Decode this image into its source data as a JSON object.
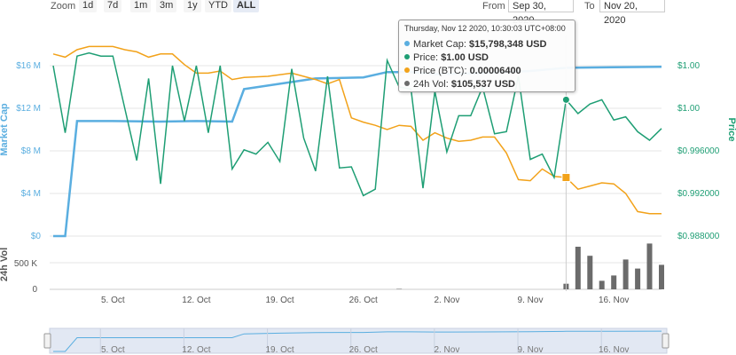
{
  "toolbar": {
    "zoom_label": "Zoom",
    "zoom_buttons": [
      "1d",
      "7d",
      "1m",
      "3m",
      "1y",
      "YTD",
      "ALL"
    ],
    "active": "ALL",
    "from_label": "From",
    "from_value": "Sep 30, 2020",
    "to_label": "To",
    "to_value": "Nov 20, 2020"
  },
  "tooltip": {
    "header": "Thursday, Nov 12 2020, 10:30:03 UTC+08:00",
    "rows": [
      {
        "label": "Market Cap:",
        "value": "$15,798,348 USD",
        "color": "#5aaee0"
      },
      {
        "label": "Price:",
        "value": "$1.00 USD",
        "color": "#1e9e74"
      },
      {
        "label": "Price (BTC):",
        "value": "0.00006400",
        "color": "#f2a21a"
      },
      {
        "label": "24h Vol:",
        "value": "$105,537 USD",
        "color": "#6b6b6b"
      }
    ]
  },
  "colors": {
    "market_cap": "#5aaee0",
    "price": "#1e9e74",
    "price_btc": "#f2a21a",
    "volume": "#6b6b6b"
  },
  "chart_data": {
    "type": "line",
    "x_start": "2020-09-30",
    "x_end": "2020-11-20",
    "x_ticks": [
      "5. Oct",
      "12. Oct",
      "19. Oct",
      "26. Oct",
      "2. Nov",
      "9. Nov",
      "16. Nov"
    ],
    "y_left": {
      "label": "Market Cap",
      "ticks": [
        "$0",
        "$4 M",
        "$8 M",
        "$12 M",
        "$16 M"
      ],
      "range": [
        0,
        16000000
      ]
    },
    "y_right": {
      "label": "Price",
      "ticks": [
        "$0.988000",
        "$0.992000",
        "$0.996000",
        "$1.00",
        "$1.00"
      ],
      "range": [
        0.988,
        1.004
      ]
    },
    "volume_axis": {
      "label": "24h Vol",
      "ticks": [
        "0",
        "500 K"
      ],
      "range": [
        0,
        1000000
      ]
    },
    "navigator_ticks": [
      "5. Oct",
      "12. Oct",
      "19. Oct",
      "26. Oct",
      "2. Nov",
      "9. Nov",
      "16. Nov"
    ],
    "series": [
      {
        "name": "Market Cap",
        "axis": "left",
        "points": [
          [
            "2020-09-30",
            0
          ],
          [
            "2020-10-01",
            0
          ],
          [
            "2020-10-02",
            10800000
          ],
          [
            "2020-10-05",
            10800000
          ],
          [
            "2020-10-09",
            10750000
          ],
          [
            "2020-10-12",
            10800000
          ],
          [
            "2020-10-15",
            10750000
          ],
          [
            "2020-10-16",
            13800000
          ],
          [
            "2020-10-19",
            14300000
          ],
          [
            "2020-10-22",
            14800000
          ],
          [
            "2020-10-26",
            14900000
          ],
          [
            "2020-10-28",
            15400000
          ],
          [
            "2020-10-30",
            15400000
          ],
          [
            "2020-11-01",
            15200000
          ],
          [
            "2020-11-05",
            15300000
          ],
          [
            "2020-11-09",
            15500000
          ],
          [
            "2020-11-12",
            15800000
          ],
          [
            "2020-11-16",
            15850000
          ],
          [
            "2020-11-20",
            15900000
          ]
        ]
      },
      {
        "name": "Price",
        "axis": "right",
        "points": [
          [
            "2020-09-30",
            1.004
          ],
          [
            "2020-10-01",
            0.9977
          ],
          [
            "2020-10-02",
            1.0049
          ],
          [
            "2020-10-03",
            1.0052
          ],
          [
            "2020-10-04",
            1.0049
          ],
          [
            "2020-10-05",
            1.0049
          ],
          [
            "2020-10-06",
            1.0
          ],
          [
            "2020-10-07",
            0.9951
          ],
          [
            "2020-10-08",
            1.0028
          ],
          [
            "2020-10-09",
            0.9929
          ],
          [
            "2020-10-10",
            1.004
          ],
          [
            "2020-10-11",
            0.9988
          ],
          [
            "2020-10-12",
            1.004
          ],
          [
            "2020-10-13",
            0.9977
          ],
          [
            "2020-10-14",
            1.004
          ],
          [
            "2020-10-15",
            0.9943
          ],
          [
            "2020-10-16",
            0.9961
          ],
          [
            "2020-10-17",
            0.9957
          ],
          [
            "2020-10-18",
            0.9968
          ],
          [
            "2020-10-19",
            0.995
          ],
          [
            "2020-10-20",
            1.0037
          ],
          [
            "2020-10-21",
            0.9972
          ],
          [
            "2020-10-22",
            0.9941
          ],
          [
            "2020-10-23",
            1.003
          ],
          [
            "2020-10-24",
            0.9944
          ],
          [
            "2020-10-25",
            0.9945
          ],
          [
            "2020-10-26",
            0.9918
          ],
          [
            "2020-10-27",
            0.9924
          ],
          [
            "2020-10-28",
            1.0045
          ],
          [
            "2020-10-29",
            1.002
          ],
          [
            "2020-10-30",
            1.0018
          ],
          [
            "2020-10-31",
            0.9925
          ],
          [
            "2020-11-01",
            1.0016
          ],
          [
            "2020-11-02",
            0.9959
          ],
          [
            "2020-11-03",
            0.9993
          ],
          [
            "2020-11-04",
            0.9993
          ],
          [
            "2020-11-05",
            1.002
          ],
          [
            "2020-11-06",
            0.9976
          ],
          [
            "2020-11-07",
            0.9978
          ],
          [
            "2020-11-08",
            1.003
          ],
          [
            "2020-11-09",
            0.9952
          ],
          [
            "2020-11-10",
            0.9957
          ],
          [
            "2020-11-11",
            0.9935
          ],
          [
            "2020-11-12",
            1.0008
          ],
          [
            "2020-11-13",
            0.9995
          ],
          [
            "2020-11-14",
            1.0004
          ],
          [
            "2020-11-15",
            1.0008
          ],
          [
            "2020-11-16",
            0.9989
          ],
          [
            "2020-11-17",
            0.9992
          ],
          [
            "2020-11-18",
            0.9978
          ],
          [
            "2020-11-19",
            0.997
          ],
          [
            "2020-11-20",
            0.9981
          ]
        ]
      },
      {
        "name": "Price (BTC)",
        "axis": "left",
        "points": [
          [
            "2020-09-30",
            17100000
          ],
          [
            "2020-10-01",
            16800000
          ],
          [
            "2020-10-02",
            17500000
          ],
          [
            "2020-10-03",
            17800000
          ],
          [
            "2020-10-05",
            17800000
          ],
          [
            "2020-10-06",
            17500000
          ],
          [
            "2020-10-07",
            17300000
          ],
          [
            "2020-10-08",
            16800000
          ],
          [
            "2020-10-09",
            17100000
          ],
          [
            "2020-10-10",
            17100000
          ],
          [
            "2020-10-11",
            16100000
          ],
          [
            "2020-10-12",
            15300000
          ],
          [
            "2020-10-13",
            15300000
          ],
          [
            "2020-10-14",
            15500000
          ],
          [
            "2020-10-15",
            14700000
          ],
          [
            "2020-10-16",
            14900000
          ],
          [
            "2020-10-18",
            15000000
          ],
          [
            "2020-10-20",
            15300000
          ],
          [
            "2020-10-22",
            14700000
          ],
          [
            "2020-10-23",
            14300000
          ],
          [
            "2020-10-24",
            14700000
          ],
          [
            "2020-10-25",
            11100000
          ],
          [
            "2020-10-26",
            10700000
          ],
          [
            "2020-10-27",
            10400000
          ],
          [
            "2020-10-28",
            10000000
          ],
          [
            "2020-10-29",
            10400000
          ],
          [
            "2020-10-30",
            10300000
          ],
          [
            "2020-10-31",
            9000000
          ],
          [
            "2020-11-01",
            9700000
          ],
          [
            "2020-11-02",
            9200000
          ],
          [
            "2020-11-03",
            8900000
          ],
          [
            "2020-11-04",
            9000000
          ],
          [
            "2020-11-05",
            9300000
          ],
          [
            "2020-11-06",
            9300000
          ],
          [
            "2020-11-07",
            7800000
          ],
          [
            "2020-11-08",
            5300000
          ],
          [
            "2020-11-09",
            5200000
          ],
          [
            "2020-11-10",
            6300000
          ],
          [
            "2020-11-11",
            5600000
          ],
          [
            "2020-11-12",
            5500000
          ],
          [
            "2020-11-13",
            4400000
          ],
          [
            "2020-11-14",
            4700000
          ],
          [
            "2020-11-15",
            5000000
          ],
          [
            "2020-11-16",
            4900000
          ],
          [
            "2020-11-17",
            4000000
          ],
          [
            "2020-11-18",
            2300000
          ],
          [
            "2020-11-19",
            2100000
          ],
          [
            "2020-11-20",
            2100000
          ]
        ]
      },
      {
        "name": "24h Vol",
        "axis": "volume",
        "points": [
          [
            "2020-10-29",
            8000
          ],
          [
            "2020-11-12",
            105537
          ],
          [
            "2020-11-13",
            800000
          ],
          [
            "2020-11-14",
            630000
          ],
          [
            "2020-11-15",
            160000
          ],
          [
            "2020-11-16",
            260000
          ],
          [
            "2020-11-17",
            560000
          ],
          [
            "2020-11-18",
            390000
          ],
          [
            "2020-11-19",
            860000
          ],
          [
            "2020-11-20",
            460000
          ]
        ]
      }
    ],
    "highlight": {
      "x": "2020-11-12",
      "btc_value": 5500000,
      "price_value": 1.0008
    }
  }
}
